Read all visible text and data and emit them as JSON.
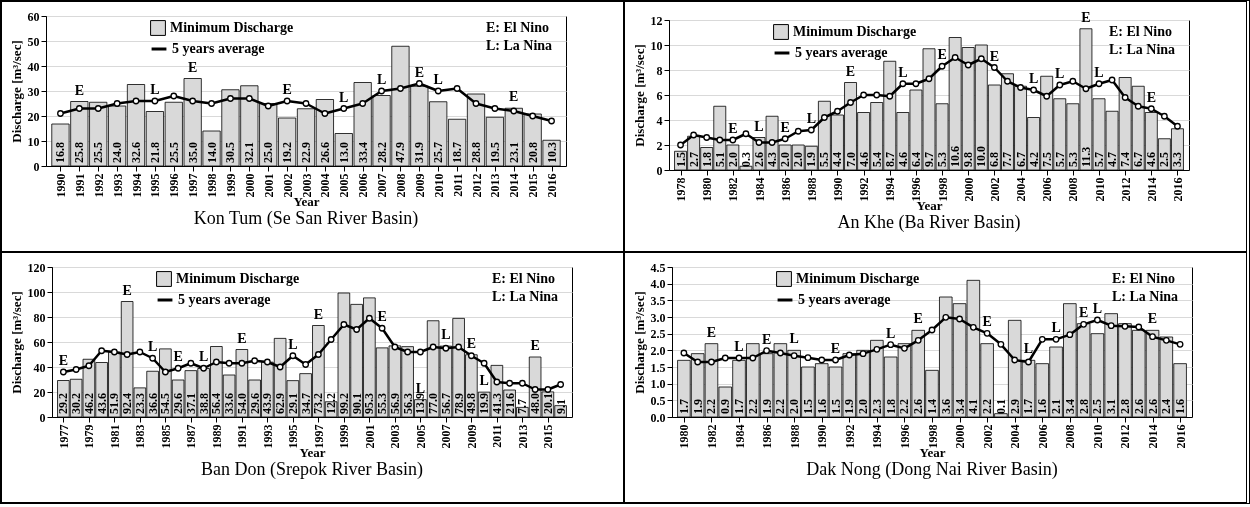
{
  "chart_data": [
    {
      "type": "bar",
      "title": "Kon Tum (Se San River Basin)",
      "xlabel": "Year",
      "ylabel": "Discharge [m³/sec]",
      "grid": "y",
      "legend": "top left",
      "marker": "circle",
      "line_style": "solid",
      "x": [
        1990,
        1991,
        1992,
        1993,
        1994,
        1995,
        1996,
        1997,
        1998,
        1999,
        2000,
        2001,
        2002,
        2003,
        2004,
        2005,
        2006,
        2007,
        2008,
        2009,
        2010,
        2011,
        2012,
        2013,
        2014,
        2015,
        2016
      ],
      "xlim": [
        1989.5,
        2016.5
      ],
      "xticks": [
        1990,
        1991,
        1992,
        1993,
        1994,
        1995,
        1996,
        1997,
        1998,
        1999,
        2000,
        2001,
        2002,
        2003,
        2004,
        2005,
        2006,
        2007,
        2008,
        2009,
        2010,
        2011,
        2012,
        2013,
        2014,
        2015,
        2016
      ],
      "ylim": [
        0,
        60
      ],
      "yticks": [
        0,
        10,
        20,
        30,
        40,
        50,
        60
      ],
      "series": [
        {
          "name": "Minimum Discharge",
          "type": "bar",
          "color": "#d9d9d9",
          "values": [
            16.8,
            25.8,
            25.5,
            24.0,
            32.6,
            21.8,
            25.5,
            35.0,
            14.0,
            30.5,
            32.1,
            25.0,
            19.2,
            22.9,
            26.6,
            13.0,
            33.4,
            28.2,
            47.9,
            31.9,
            25.7,
            18.7,
            28.8,
            19.5,
            23.1,
            20.8,
            10.3
          ],
          "value_labels": [
            "16.8",
            "25.8",
            "25.5",
            "24.0",
            "32.6",
            "21.8",
            "25.5",
            "35.0",
            "14.0",
            "30.5",
            "32.1",
            "25.0",
            "19.2",
            "22.9",
            "26.6",
            "13.0",
            "33.4",
            "28.2",
            "47.9",
            "31.9",
            "25.7",
            "18.7",
            "28.8",
            "19.5",
            "23.1",
            "20.8",
            "10.3"
          ]
        },
        {
          "name": "5 years average",
          "type": "line",
          "color": "#000000",
          "values": [
            21,
            23,
            23,
            25,
            26,
            26,
            28,
            26,
            25,
            27,
            27,
            24,
            26,
            25,
            21,
            23,
            25,
            30,
            31,
            33,
            30,
            31,
            25,
            23,
            22,
            20,
            18
          ]
        }
      ],
      "annotations": [
        "E: El Nino",
        "L: La Nina",
        {
          "text": "E",
          "x": 1991,
          "y": 25.8
        },
        {
          "text": "L",
          "x": 1995,
          "y": 26
        },
        {
          "text": "E",
          "x": 1997,
          "y": 35.0
        },
        {
          "text": "E",
          "x": 2002,
          "y": 26
        },
        {
          "text": "L",
          "x": 2005,
          "y": 23
        },
        {
          "text": "L",
          "x": 2007,
          "y": 30
        },
        {
          "text": "E",
          "x": 2009,
          "y": 33
        },
        {
          "text": "L",
          "x": 2010,
          "y": 30
        },
        {
          "text": "E",
          "x": 2014,
          "y": 23.1
        }
      ]
    },
    {
      "type": "bar",
      "title": "An Khe (Ba River Basin)",
      "xlabel": "Year",
      "ylabel": "Discharge [m³/sec]",
      "grid": "y",
      "legend": "top left",
      "marker": "circle",
      "line_style": "solid",
      "x": [
        1978,
        1979,
        1980,
        1981,
        1982,
        1983,
        1984,
        1985,
        1986,
        1987,
        1988,
        1989,
        1990,
        1991,
        1992,
        1993,
        1994,
        1995,
        1996,
        1997,
        1998,
        1999,
        2000,
        2001,
        2002,
        2003,
        2004,
        2005,
        2006,
        2007,
        2008,
        2009,
        2010,
        2011,
        2012,
        2013,
        2014,
        2015,
        2016
      ],
      "xlim": [
        1977.5,
        2016.5
      ],
      "xticks": [
        1978,
        1980,
        1982,
        1984,
        1986,
        1988,
        1990,
        1992,
        1994,
        1996,
        1998,
        2000,
        2002,
        2004,
        2006,
        2008,
        2010,
        2012,
        2014,
        2016
      ],
      "ylim": [
        0,
        12
      ],
      "yticks": [
        0,
        2,
        4,
        6,
        8,
        10,
        12
      ],
      "series": [
        {
          "name": "Minimum Discharge",
          "type": "bar",
          "color": "#d9d9d9",
          "values": [
            1.5,
            2.7,
            1.8,
            5.1,
            2.0,
            0.3,
            2.6,
            4.3,
            2.0,
            2.0,
            1.9,
            5.5,
            4.4,
            7.0,
            4.6,
            5.4,
            8.7,
            4.6,
            6.4,
            9.7,
            5.3,
            10.6,
            9.8,
            10.0,
            6.8,
            7.7,
            6.7,
            4.2,
            7.5,
            5.7,
            5.3,
            11.3,
            5.7,
            4.7,
            7.4,
            6.7,
            4.6,
            2.5,
            3.3
          ],
          "value_labels": [
            "1.5",
            "2.7",
            "1.8",
            "5.1",
            "2.0",
            "0.3",
            "2.6",
            "4.3",
            "2.0",
            "2.0",
            "1.9",
            "5.5",
            "4.4",
            "7.0",
            "4.6",
            "5.4",
            "8.7",
            "4.6",
            "6.4",
            "9.7",
            "5.3",
            "10.6",
            "9.8",
            "10.0",
            "6.8",
            "7.7",
            "6.7",
            "4.2",
            "7.5",
            "5.7",
            "5.3",
            "11.3",
            "5.7",
            "4.7",
            "7.4",
            "6.7",
            "4.6",
            "2.5",
            "3.3"
          ]
        },
        {
          "name": "5 years average",
          "type": "line",
          "color": "#000000",
          "values": [
            2.0,
            2.8,
            2.6,
            2.4,
            2.4,
            2.9,
            2.2,
            2.2,
            2.5,
            3.1,
            3.2,
            4.2,
            4.7,
            5.4,
            6.0,
            6.0,
            5.9,
            6.9,
            6.9,
            7.3,
            8.3,
            9.0,
            8.4,
            8.9,
            8.2,
            7.1,
            6.6,
            6.4,
            5.9,
            6.8,
            7.1,
            6.5,
            6.9,
            7.2,
            5.8,
            5.1,
            4.9,
            4.3,
            3.5
          ]
        }
      ],
      "annotations": [
        "E: El Nino",
        "L: La Nina",
        {
          "text": "E",
          "x": 1982,
          "y": 2.4
        },
        {
          "text": "L",
          "x": 1984,
          "y": 2.6
        },
        {
          "text": "E",
          "x": 1986,
          "y": 2.5
        },
        {
          "text": "L",
          "x": 1988,
          "y": 3.2
        },
        {
          "text": "E",
          "x": 1991,
          "y": 7.0
        },
        {
          "text": "L",
          "x": 1995,
          "y": 6.9
        },
        {
          "text": "E",
          "x": 1998,
          "y": 8.3
        },
        {
          "text": "E",
          "x": 2002,
          "y": 8.2
        },
        {
          "text": "L",
          "x": 2005,
          "y": 6.4
        },
        {
          "text": "L",
          "x": 2007,
          "y": 6.8
        },
        {
          "text": "E",
          "x": 2009,
          "y": 11.3
        },
        {
          "text": "L",
          "x": 2010,
          "y": 6.9
        },
        {
          "text": "E",
          "x": 2014,
          "y": 4.9
        }
      ]
    },
    {
      "type": "bar",
      "title": "Ban Don (Srepok River Basin)",
      "xlabel": "Year",
      "ylabel": "Discharge [m³/sec]",
      "grid": "y",
      "legend": "top left",
      "marker": "circle",
      "line_style": "solid",
      "x": [
        1977,
        1978,
        1979,
        1980,
        1981,
        1982,
        1983,
        1984,
        1985,
        1986,
        1987,
        1988,
        1989,
        1990,
        1991,
        1992,
        1993,
        1994,
        1995,
        1996,
        1997,
        1998,
        1999,
        2000,
        2001,
        2002,
        2003,
        2004,
        2005,
        2006,
        2007,
        2008,
        2009,
        2010,
        2011,
        2012,
        2013,
        2014,
        2015,
        2016
      ],
      "xlim": [
        1976.5,
        2016.5
      ],
      "xticks": [
        1977,
        1979,
        1981,
        1983,
        1985,
        1987,
        1989,
        1991,
        1993,
        1995,
        1997,
        1999,
        2001,
        2003,
        2005,
        2007,
        2009,
        2011,
        2013,
        2015
      ],
      "ylim": [
        0,
        120
      ],
      "yticks": [
        0,
        20,
        40,
        60,
        80,
        100,
        120
      ],
      "series": [
        {
          "name": "Minimum Discharge",
          "type": "bar",
          "color": "#d9d9d9",
          "values": [
            29.2,
            30.2,
            46.2,
            43.6,
            51.9,
            92.4,
            23.3,
            36.6,
            54.5,
            29.6,
            37.1,
            38.8,
            56.4,
            33.6,
            54.0,
            29.6,
            43.9,
            62.9,
            29.1,
            34.7,
            73.2,
            12.2,
            99.2,
            90.1,
            95.3,
            55.3,
            56.9,
            56.3,
            13.9,
            77.0,
            56.7,
            78.9,
            49.8,
            19.9,
            41.3,
            21.6,
            7.7,
            48.0,
            20.1,
            9.1
          ],
          "value_labels": [
            "29.2",
            "30.2",
            "46.2",
            "43.6",
            "51.9",
            "92.4",
            "23.3",
            "36.6",
            "54.5",
            "29.6",
            "37.1",
            "38.8",
            "56.4",
            "33.6",
            "54.0",
            "29.6",
            "43.9",
            "62.9",
            "29.1",
            "34.7",
            "73.2",
            "12.2",
            "99.2",
            "90.1",
            "95.3",
            "55.3",
            "56.9",
            "56.3",
            "13.9",
            "77.0",
            "56.7",
            "78.9",
            "49.8",
            "19.9",
            "41.3",
            "21.6",
            "7.7",
            "48.0",
            "20.1",
            "9.1"
          ]
        },
        {
          "name": "5 years average",
          "type": "line",
          "color": "#000000",
          "values": [
            36,
            38,
            41,
            53,
            52,
            50,
            52,
            47,
            36,
            39,
            43,
            39,
            44,
            43,
            43,
            45,
            44,
            40,
            49,
            42,
            50,
            62,
            74,
            70,
            79,
            71,
            56,
            52,
            52,
            56,
            55,
            56,
            49,
            43,
            28,
            27,
            27,
            22,
            22,
            26
          ]
        }
      ],
      "annotations": [
        "E: El Nino",
        "L: La Nina",
        {
          "text": "E",
          "x": 1977,
          "y": 36
        },
        {
          "text": "E",
          "x": 1982,
          "y": 92.4
        },
        {
          "text": "L",
          "x": 1984,
          "y": 47
        },
        {
          "text": "E",
          "x": 1986,
          "y": 39
        },
        {
          "text": "L",
          "x": 1988,
          "y": 39
        },
        {
          "text": "E",
          "x": 1991,
          "y": 54.0
        },
        {
          "text": "L",
          "x": 1995,
          "y": 49
        },
        {
          "text": "E",
          "x": 1997,
          "y": 73.2
        },
        {
          "text": "E",
          "x": 2002,
          "y": 71
        },
        {
          "text": "L",
          "x": 2005,
          "y": 13.9
        },
        {
          "text": "L",
          "x": 2007,
          "y": 56.7
        },
        {
          "text": "E",
          "x": 2009,
          "y": 49.8
        },
        {
          "text": "L",
          "x": 2010,
          "y": 19.9
        },
        {
          "text": "E",
          "x": 2014,
          "y": 48.0
        }
      ]
    },
    {
      "type": "bar",
      "title": "Dak Nong (Dong Nai River Basin)",
      "xlabel": "Year",
      "ylabel": "Discharge [m³/sec]",
      "grid": "y",
      "legend": "top left",
      "marker": "circle",
      "line_style": "solid",
      "x": [
        1980,
        1981,
        1982,
        1983,
        1984,
        1985,
        1986,
        1987,
        1988,
        1989,
        1990,
        1991,
        1992,
        1993,
        1994,
        1995,
        1996,
        1997,
        1998,
        1999,
        2000,
        2001,
        2002,
        2003,
        2004,
        2005,
        2006,
        2007,
        2008,
        2009,
        2010,
        2011,
        2012,
        2013,
        2014,
        2015,
        2016
      ],
      "xlim": [
        1979.5,
        2016.5
      ],
      "xticks": [
        1980,
        1982,
        1984,
        1986,
        1988,
        1990,
        1992,
        1994,
        1996,
        1998,
        2000,
        2002,
        2004,
        2006,
        2008,
        2010,
        2012,
        2014,
        2016
      ],
      "ylim": [
        0,
        4.5
      ],
      "yticks": [
        {
          "value": 0,
          "label": "0.0"
        },
        0.5,
        {
          "value": 1,
          "label": "1.0"
        },
        1.5,
        {
          "value": 2,
          "label": "2.0"
        },
        2.5,
        {
          "value": 3,
          "label": "3.0"
        },
        3.5,
        {
          "value": 4,
          "label": "4.0"
        },
        4.5
      ],
      "series": [
        {
          "name": "Minimum Discharge",
          "type": "bar",
          "color": "#d9d9d9",
          "values": [
            1.7,
            1.9,
            2.2,
            0.9,
            1.7,
            2.2,
            1.9,
            2.2,
            2.0,
            1.5,
            1.6,
            1.5,
            1.9,
            2.0,
            2.3,
            1.8,
            2.2,
            2.6,
            1.4,
            3.6,
            3.4,
            4.1,
            2.2,
            0.1,
            2.9,
            1.7,
            1.6,
            2.1,
            3.4,
            2.8,
            2.5,
            3.1,
            2.8,
            2.6,
            2.6,
            2.4,
            1.6
          ],
          "value_labels": [
            "1.7",
            "1.9",
            "2.2",
            "0.9",
            "1.7",
            "2.2",
            "1.9",
            "2.2",
            "2.0",
            "1.5",
            "1.6",
            "1.5",
            "1.9",
            "2.0",
            "2.3",
            "1.8",
            "2.2",
            "2.6",
            "1.4",
            "3.6",
            "3.4",
            "4.1",
            "2.2",
            "0.1",
            "2.9",
            "1.7",
            "1.6",
            "2.1",
            "3.4",
            "2.8",
            "2.5",
            "3.1",
            "2.8",
            "2.6",
            "2.6",
            "2.4",
            "1.6"
          ]
        },
        {
          "name": "5 years average",
          "type": "line",
          "color": "#000000",
          "values": [
            1.92,
            1.65,
            1.65,
            1.77,
            1.77,
            1.77,
            1.99,
            1.92,
            1.84,
            1.78,
            1.71,
            1.71,
            1.86,
            1.9,
            2.03,
            2.17,
            2.06,
            2.3,
            2.61,
            2.99,
            2.94,
            2.69,
            2.51,
            2.18,
            1.71,
            1.65,
            2.33,
            2.33,
            2.47,
            2.78,
            2.91,
            2.74,
            2.72,
            2.7,
            2.41,
            2.3,
            2.18
          ]
        }
      ],
      "annotations": [
        "E: El Nino",
        "L: La Nina",
        {
          "text": "E",
          "x": 1982,
          "y": 2.2
        },
        {
          "text": "L",
          "x": 1984,
          "y": 1.77
        },
        {
          "text": "E",
          "x": 1986,
          "y": 1.99
        },
        {
          "text": "L",
          "x": 1988,
          "y": 2.0
        },
        {
          "text": "E",
          "x": 1991,
          "y": 1.71
        },
        {
          "text": "L",
          "x": 1995,
          "y": 2.17
        },
        {
          "text": "E",
          "x": 1997,
          "y": 2.6
        },
        {
          "text": "E",
          "x": 2002,
          "y": 2.51
        },
        {
          "text": "L",
          "x": 2005,
          "y": 1.7
        },
        {
          "text": "L",
          "x": 2007,
          "y": 2.33
        },
        {
          "text": "E",
          "x": 2009,
          "y": 2.78
        },
        {
          "text": "L",
          "x": 2010,
          "y": 2.91
        },
        {
          "text": "E",
          "x": 2014,
          "y": 2.6
        }
      ]
    }
  ]
}
